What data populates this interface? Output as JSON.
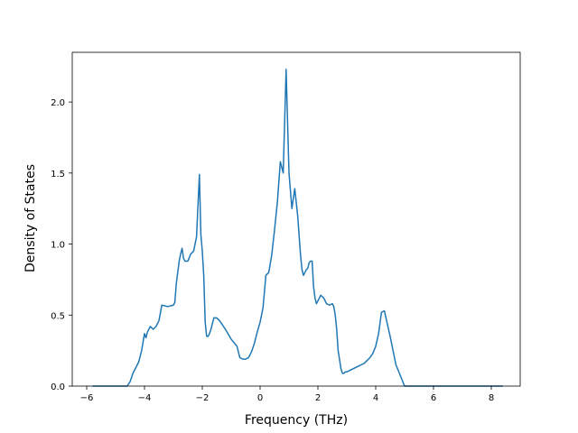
{
  "chart_data": {
    "type": "line",
    "xlabel": "Frequency (THz)",
    "ylabel": "Density of States",
    "xlim": [
      -6.5,
      9.0
    ],
    "ylim": [
      0.0,
      2.35
    ],
    "x_ticks": [
      -6,
      -4,
      -2,
      0,
      2,
      4,
      6,
      8
    ],
    "x_tick_labels": [
      "−6",
      "−4",
      "−2",
      "0",
      "2",
      "4",
      "6",
      "8"
    ],
    "y_ticks": [
      0.0,
      0.5,
      1.0,
      1.5,
      2.0
    ],
    "y_tick_labels": [
      "0.0",
      "0.5",
      "1.0",
      "1.5",
      "2.0"
    ],
    "grid": false,
    "line_color": "#1f77b4",
    "series": [
      {
        "x": [
          -5.8,
          -4.6,
          -4.5,
          -4.4,
          -4.2,
          -4.1,
          -4.0,
          -3.95,
          -3.9,
          -3.8,
          -3.7,
          -3.6,
          -3.5,
          -3.4,
          -3.2,
          -3.0,
          -2.95,
          -2.9,
          -2.85,
          -2.8,
          -2.75,
          -2.7,
          -2.65,
          -2.6,
          -2.5,
          -2.4,
          -2.3,
          -2.2,
          -2.1,
          -2.05,
          -2.0,
          -1.95,
          -1.9,
          -1.85,
          -1.8,
          -1.75,
          -1.7,
          -1.6,
          -1.5,
          -1.4,
          -1.3,
          -1.2,
          -1.0,
          -0.8,
          -0.7,
          -0.6,
          -0.5,
          -0.4,
          -0.3,
          -0.2,
          -0.1,
          0.0,
          0.1,
          0.2,
          0.3,
          0.4,
          0.5,
          0.6,
          0.7,
          0.8,
          0.9,
          1.0,
          1.1,
          1.2,
          1.3,
          1.4,
          1.45,
          1.5,
          1.55,
          1.6,
          1.65,
          1.7,
          1.75,
          1.8,
          1.85,
          1.9,
          1.95,
          2.0,
          2.1,
          2.2,
          2.3,
          2.4,
          2.5,
          2.55,
          2.6,
          2.65,
          2.7,
          2.8,
          2.85,
          2.9,
          2.95,
          3.0,
          3.1,
          3.2,
          3.3,
          3.4,
          3.5,
          3.6,
          3.7,
          3.8,
          3.9,
          4.0,
          4.1,
          4.2,
          4.3,
          4.5,
          4.7,
          5.0,
          5.3,
          5.5,
          5.8,
          6.0,
          6.2,
          6.4,
          6.5,
          6.6,
          6.7,
          6.8,
          6.85,
          6.9,
          6.95,
          7.0,
          7.1,
          7.2,
          7.3,
          8.4
        ],
        "y": [
          0.0,
          0.0,
          0.03,
          0.09,
          0.17,
          0.25,
          0.37,
          0.34,
          0.38,
          0.42,
          0.4,
          0.42,
          0.46,
          0.57,
          0.56,
          0.57,
          0.59,
          0.72,
          0.8,
          0.88,
          0.93,
          0.97,
          0.9,
          0.88,
          0.88,
          0.93,
          0.95,
          1.05,
          1.49,
          1.07,
          0.95,
          0.78,
          0.45,
          0.35,
          0.35,
          0.37,
          0.4,
          0.48,
          0.48,
          0.46,
          0.43,
          0.4,
          0.33,
          0.28,
          0.2,
          0.19,
          0.19,
          0.2,
          0.24,
          0.3,
          0.38,
          0.45,
          0.55,
          0.78,
          0.8,
          0.92,
          1.1,
          1.3,
          1.58,
          1.5,
          2.23,
          1.5,
          1.25,
          1.39,
          1.2,
          0.92,
          0.82,
          0.78,
          0.8,
          0.82,
          0.83,
          0.87,
          0.88,
          0.88,
          0.7,
          0.62,
          0.58,
          0.6,
          0.64,
          0.62,
          0.58,
          0.57,
          0.58,
          0.56,
          0.5,
          0.4,
          0.25,
          0.12,
          0.09,
          0.09,
          0.1,
          0.1,
          0.11,
          0.12,
          0.13,
          0.14,
          0.15,
          0.16,
          0.18,
          0.2,
          0.23,
          0.28,
          0.37,
          0.52,
          0.53,
          0.35,
          0.15,
          0.0,
          0.0,
          0.0,
          0.0,
          0.0,
          0.0,
          0.0,
          0.0,
          0.0,
          0.0,
          0.0,
          0.0,
          0.0,
          0.0,
          0.0,
          0.0,
          0.0,
          0.0,
          0.0
        ]
      }
    ]
  }
}
